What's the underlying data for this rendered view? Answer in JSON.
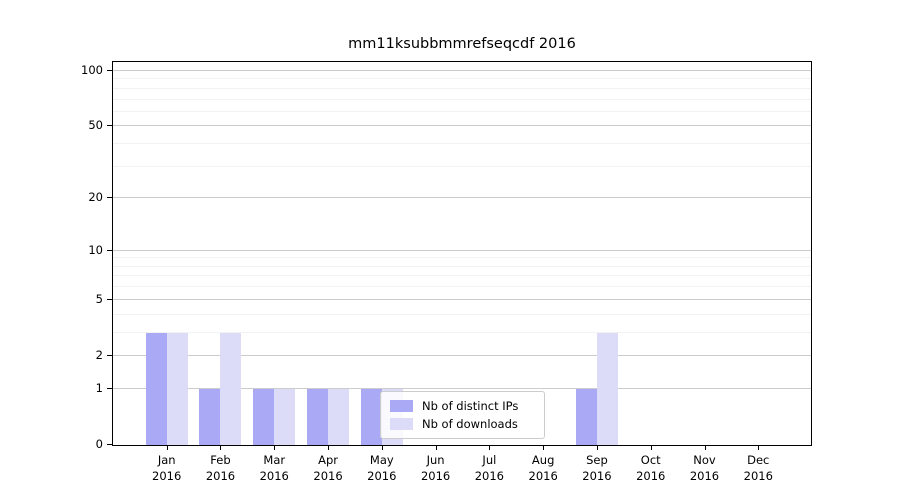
{
  "title": "mm11ksubbmmrefseqcdf 2016",
  "colors": {
    "ips": "#a9a9f5",
    "downloads": "#dcdcf9",
    "grid_major": "#cccccc",
    "grid_minor": "#f2f2f2",
    "axis": "#000000",
    "background": "#ffffff"
  },
  "y_axis": {
    "tick_labels": [
      "100",
      "50",
      "20",
      "10",
      "5",
      "2",
      "1",
      "0"
    ],
    "tick_values": [
      100,
      50,
      20,
      10,
      5,
      2,
      1,
      0
    ]
  },
  "x_axis": {
    "months": [
      "Jan",
      "Feb",
      "Mar",
      "Apr",
      "May",
      "Jun",
      "Jul",
      "Aug",
      "Sep",
      "Oct",
      "Nov",
      "Dec"
    ],
    "year": "2016"
  },
  "legend": {
    "items": [
      {
        "label": "Nb of distinct IPs",
        "color_key": "ips"
      },
      {
        "label": "Nb of downloads",
        "color_key": "downloads"
      }
    ]
  },
  "chart_data": {
    "type": "bar",
    "title": "mm11ksubbmmrefseqcdf 2016",
    "categories": [
      "Jan 2016",
      "Feb 2016",
      "Mar 2016",
      "Apr 2016",
      "May 2016",
      "Jun 2016",
      "Jul 2016",
      "Aug 2016",
      "Sep 2016",
      "Oct 2016",
      "Nov 2016",
      "Dec 2016"
    ],
    "series": [
      {
        "name": "Nb of distinct IPs",
        "color_key": "ips",
        "values": [
          3,
          1,
          1,
          1,
          1,
          0,
          0,
          0,
          1,
          0,
          0,
          0
        ]
      },
      {
        "name": "Nb of downloads",
        "color_key": "downloads",
        "values": [
          3,
          3,
          1,
          1,
          1,
          0,
          0,
          0,
          3,
          0,
          0,
          0
        ]
      }
    ],
    "yscale": "log1p",
    "yticks": [
      0,
      1,
      2,
      5,
      10,
      20,
      50,
      100
    ],
    "minor_gridlines": [
      3,
      4,
      6,
      7,
      8,
      9,
      30,
      40,
      60,
      70,
      80,
      90
    ],
    "ylim": [
      0,
      112
    ],
    "grid": true,
    "legend_position": "center"
  }
}
